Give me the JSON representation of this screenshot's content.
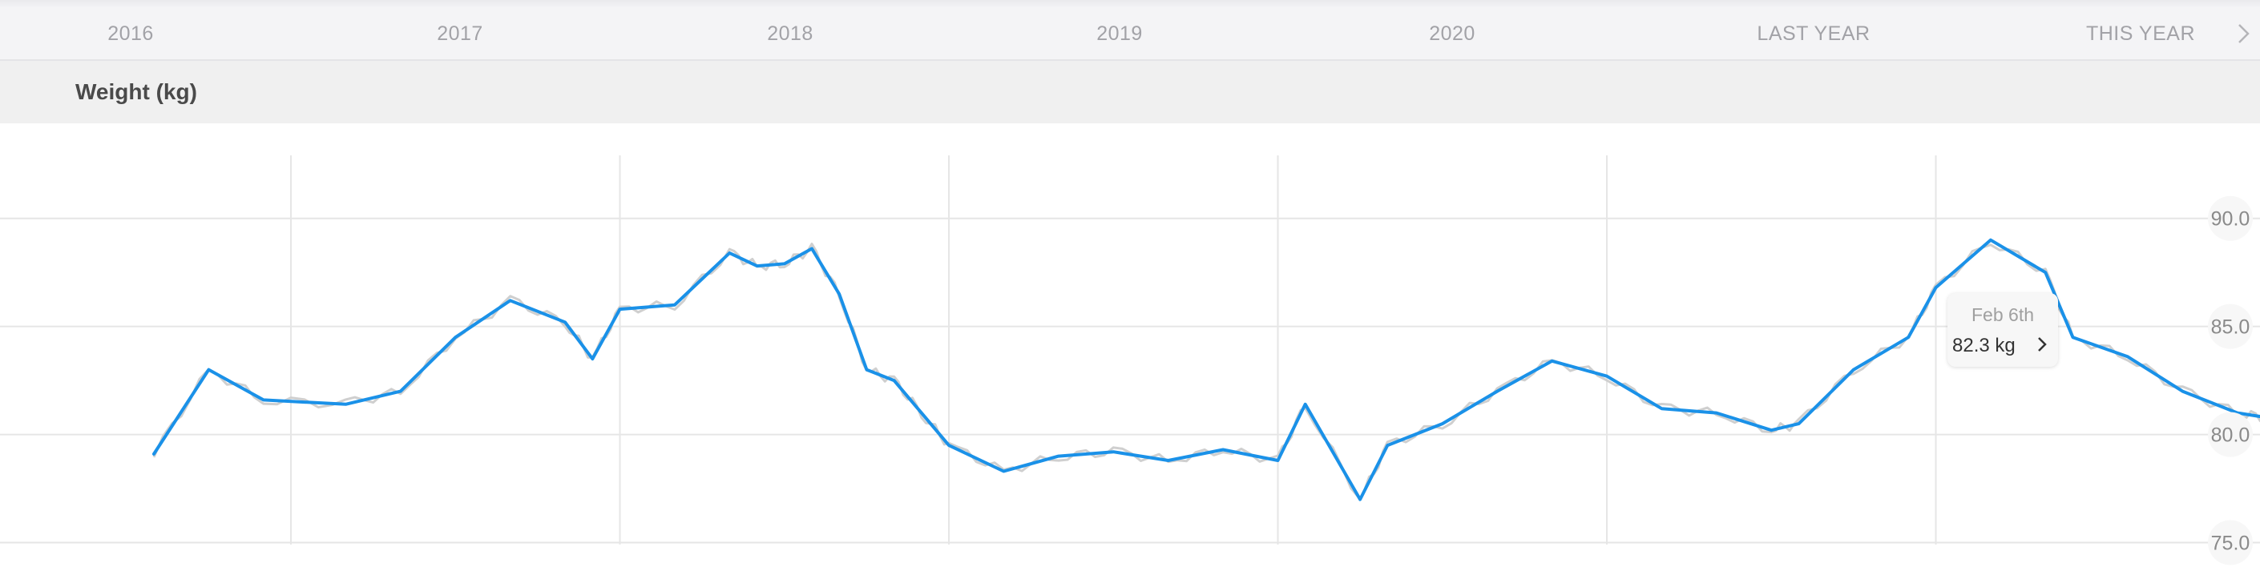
{
  "range_selector": {
    "items": [
      "2016",
      "2017",
      "2018",
      "2019",
      "2020",
      "LAST YEAR",
      "THIS YEAR"
    ],
    "next_icon": "chevron-right-icon"
  },
  "metric": {
    "title": "Weight (kg)"
  },
  "tooltip": {
    "date": "Feb 6th",
    "value": "82.3 kg",
    "icon": "chevron-right-icon"
  },
  "colors": {
    "trend_line": "#1a91e8",
    "raw_line": "#cfcfcf",
    "grid": "#e6e6e6"
  },
  "chart_data": {
    "type": "line",
    "y_ticks": [
      "90.0",
      "85.0",
      "80.0",
      "75.0"
    ],
    "ylim": [
      73.5,
      94.4
    ],
    "x": [
      "2015-08",
      "2015-10",
      "2015-12",
      "2016-03",
      "2016-05",
      "2016-07",
      "2016-09",
      "2016-11",
      "2016-12",
      "2017-01",
      "2017-03",
      "2017-05",
      "2017-06",
      "2017-07",
      "2017-08",
      "2017-09",
      "2017-10",
      "2017-11",
      "2017-12",
      "2018-01",
      "2018-03",
      "2018-05",
      "2018-07",
      "2018-09",
      "2018-11",
      "2019-01",
      "2019-02",
      "2019-04",
      "2019-05",
      "2019-07",
      "2019-09",
      "2019-11",
      "2020-01",
      "2020-03",
      "2020-05",
      "2020-07",
      "2020-08",
      "2020-10",
      "2020-12",
      "2021-01",
      "2021-03",
      "2021-05",
      "2021-06",
      "2021-08",
      "2021-10",
      "2021-12",
      "2022-01",
      "2022-02"
    ],
    "series": [
      {
        "values": [
          79.1,
          83.0,
          81.6,
          81.4,
          82.0,
          84.5,
          86.2,
          85.2,
          83.5,
          85.8,
          86.0,
          88.4,
          87.8,
          87.9,
          88.6,
          86.5,
          83.0,
          82.5,
          81.0,
          79.5,
          78.3,
          79.0,
          79.2,
          78.8,
          79.3,
          78.8,
          81.4,
          77.0,
          79.5,
          80.5,
          82.0,
          83.4,
          82.7,
          81.2,
          81.0,
          80.2,
          80.5,
          83.0,
          84.5,
          86.8,
          89.0,
          87.5,
          84.5,
          83.6,
          82.0,
          81.0,
          80.8,
          82.3
        ]
      }
    ]
  }
}
